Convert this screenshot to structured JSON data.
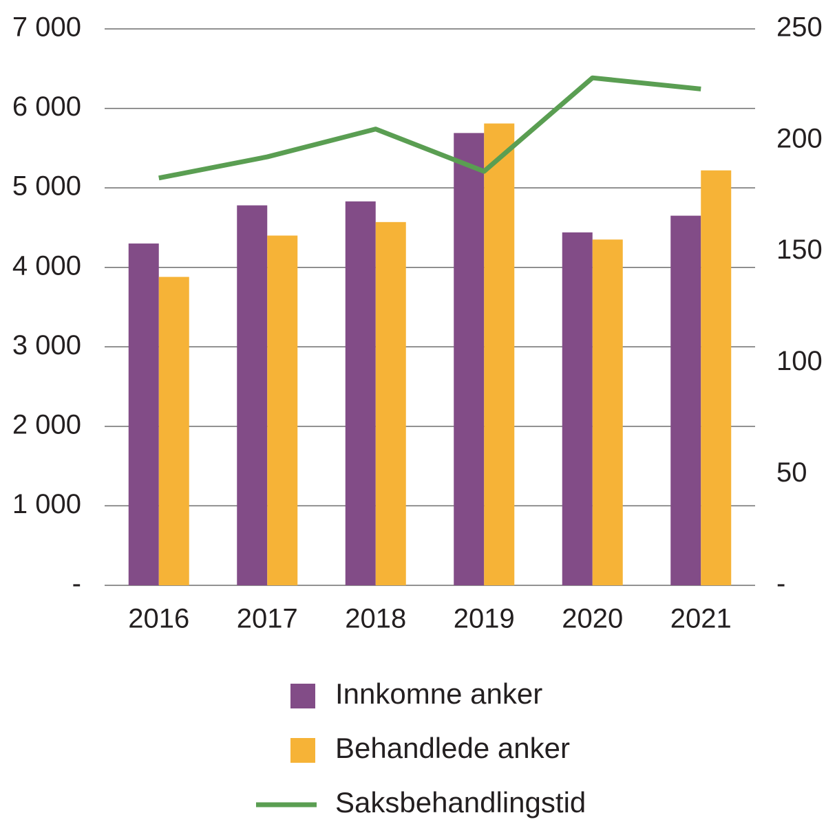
{
  "chart_data": {
    "type": "bar",
    "categories": [
      "2016",
      "2017",
      "2018",
      "2019",
      "2020",
      "2021"
    ],
    "series": [
      {
        "name": "Innkomne anker",
        "color": "#824c87",
        "values": [
          4300,
          4780,
          4830,
          5690,
          4440,
          4650
        ]
      },
      {
        "name": "Behandlede anker",
        "color": "#f6b337",
        "values": [
          3880,
          4400,
          4570,
          5810,
          4350,
          5220
        ]
      },
      {
        "name": "Saksbehandlingstid",
        "color": "#5a9e52",
        "type": "line",
        "axis": "y2",
        "values": [
          183,
          192.5,
          205,
          186,
          228,
          223
        ]
      }
    ],
    "ylim": [
      0,
      7000
    ],
    "yticks": [
      {
        "value": 0,
        "label": "-"
      },
      {
        "value": 1000,
        "label": "1 000"
      },
      {
        "value": 2000,
        "label": "2 000"
      },
      {
        "value": 3000,
        "label": "3 000"
      },
      {
        "value": 4000,
        "label": "4 000"
      },
      {
        "value": 5000,
        "label": "5 000"
      },
      {
        "value": 6000,
        "label": "6 000"
      },
      {
        "value": 7000,
        "label": "7 000"
      }
    ],
    "y2lim": [
      0,
      250
    ],
    "y2ticks": [
      {
        "value": 0,
        "label": "-"
      },
      50,
      100,
      150,
      200,
      250
    ],
    "grid": true
  }
}
